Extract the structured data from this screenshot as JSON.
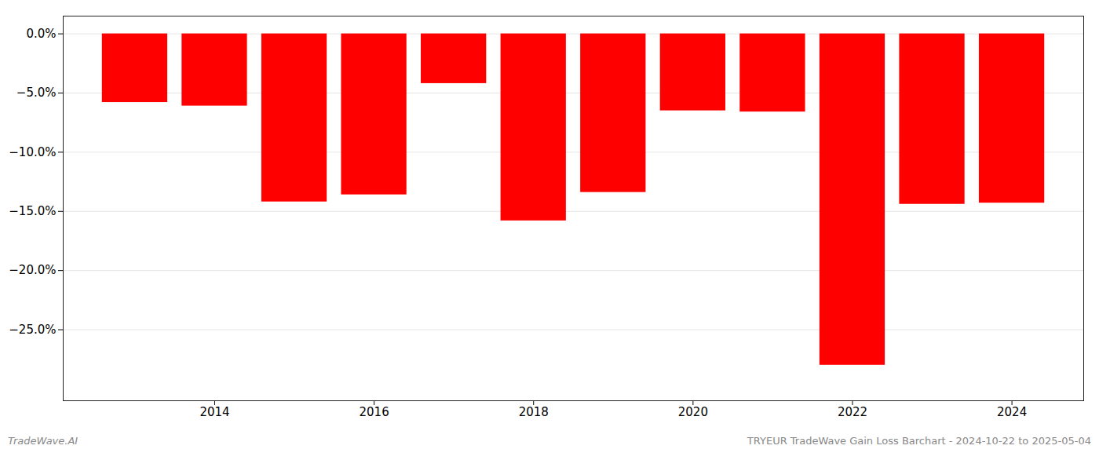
{
  "chart_data": {
    "type": "bar",
    "x": [
      2013,
      2014,
      2015,
      2016,
      2017,
      2018,
      2019,
      2020,
      2021,
      2022,
      2023,
      2024
    ],
    "values": [
      -5.8,
      -6.1,
      -14.2,
      -13.6,
      -4.2,
      -15.8,
      -13.4,
      -6.5,
      -6.6,
      -28.0,
      -14.4,
      -14.3
    ],
    "color": "#ff0000",
    "xlim": [
      2012.1,
      2024.9
    ],
    "xticks": [
      2014,
      2016,
      2018,
      2020,
      2022,
      2024
    ],
    "ylim": [
      -31,
      1.5
    ],
    "yticks": [
      {
        "value": 0.0,
        "label": "0.0%"
      },
      {
        "value": -5.0,
        "label": "−5.0%"
      },
      {
        "value": -10.0,
        "label": "−10.0%"
      },
      {
        "value": -15.0,
        "label": "−15.0%"
      },
      {
        "value": -20.0,
        "label": "−20.0%"
      },
      {
        "value": -25.0,
        "label": "−25.0%"
      }
    ],
    "grid": true,
    "annotations": [
      "TradeWave.AI",
      "TRYEUR TradeWave Gain Loss Barchart - 2024-10-22 to 2025-05-04"
    ]
  }
}
